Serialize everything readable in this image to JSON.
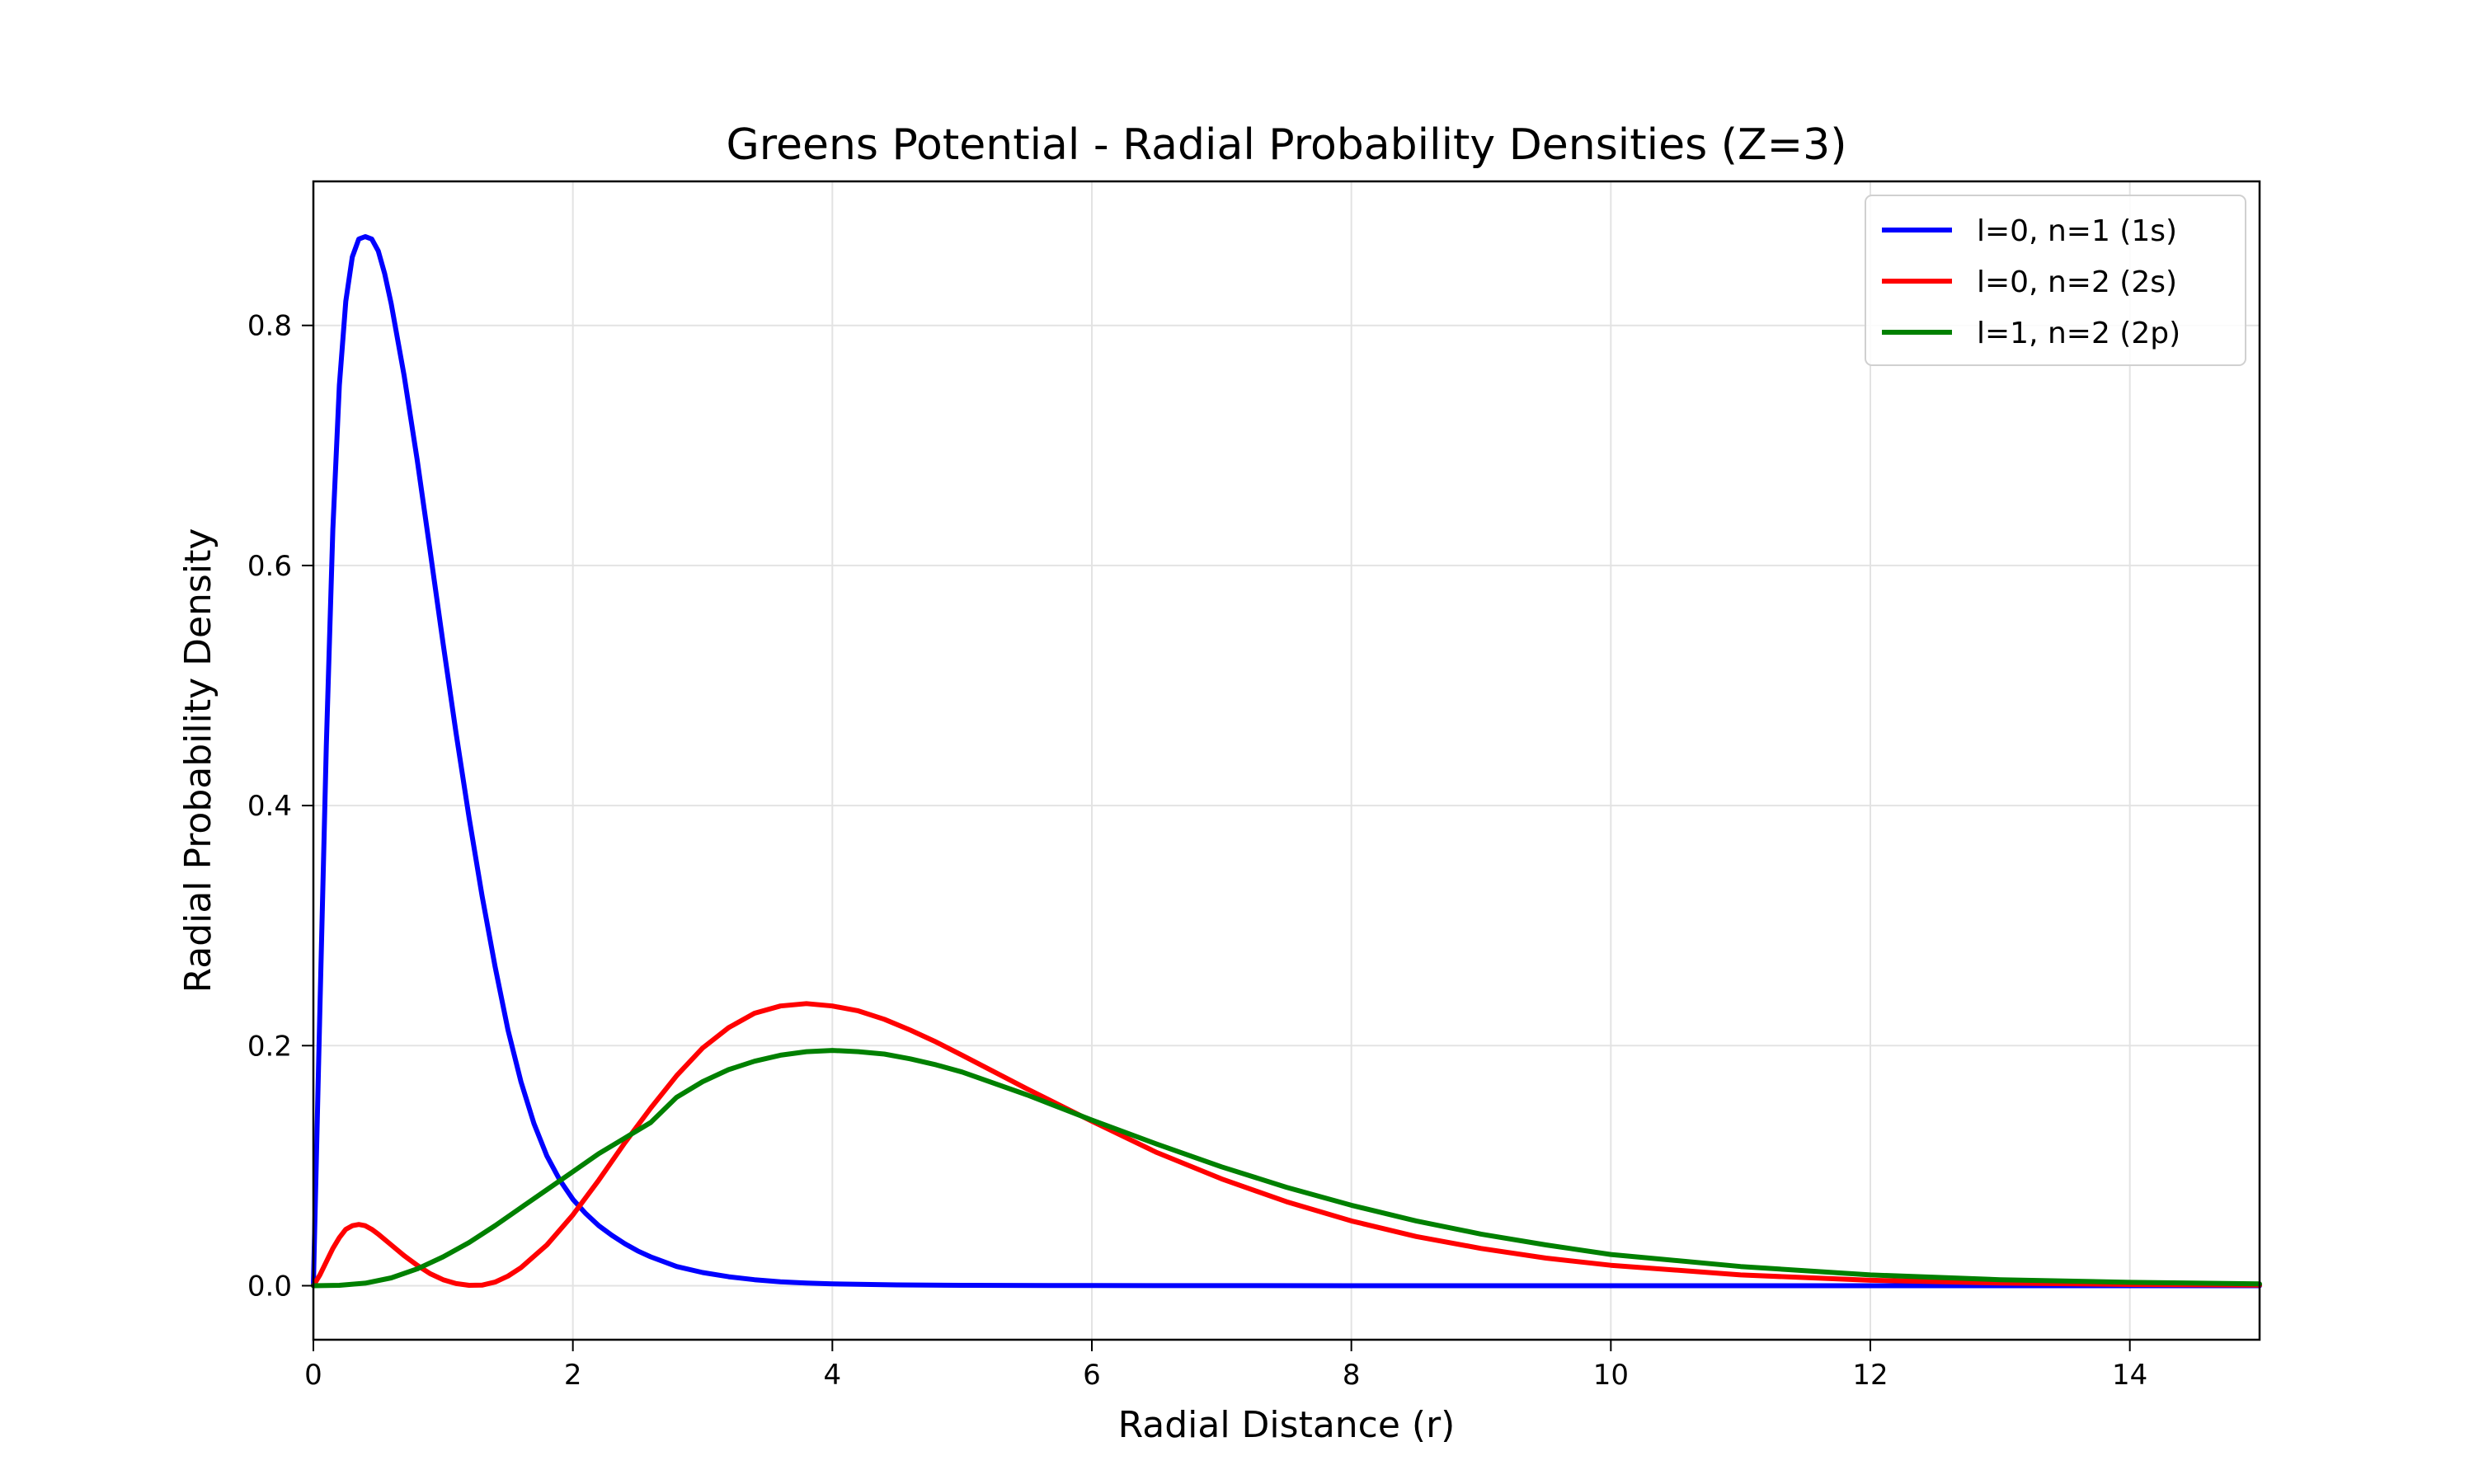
{
  "chart_data": {
    "type": "line",
    "title": "Greens Potential - Radial Probability Densities (Z=3)",
    "xlabel": "Radial Distance (r)",
    "ylabel": "Radial Probability Density",
    "xlim": [
      0,
      15
    ],
    "ylim": [
      -0.045,
      0.92
    ],
    "xticks": [
      0,
      2,
      4,
      6,
      8,
      10,
      12,
      14
    ],
    "yticks": [
      0.0,
      0.2,
      0.4,
      0.6,
      0.8
    ],
    "xtick_labels": [
      "0",
      "2",
      "4",
      "6",
      "8",
      "10",
      "12",
      "14"
    ],
    "ytick_labels": [
      "0.0",
      "0.2",
      "0.4",
      "0.6",
      "0.8"
    ],
    "grid": true,
    "legend_position": "top-right",
    "series": [
      {
        "name": "l=0, n=1 (1s)",
        "color": "#0000ff",
        "x": [
          0,
          0.05,
          0.1,
          0.15,
          0.2,
          0.25,
          0.3,
          0.35,
          0.4,
          0.45,
          0.5,
          0.55,
          0.6,
          0.7,
          0.8,
          0.9,
          1.0,
          1.1,
          1.2,
          1.3,
          1.4,
          1.5,
          1.6,
          1.7,
          1.8,
          1.9,
          2.0,
          2.1,
          2.2,
          2.3,
          2.4,
          2.5,
          2.6,
          2.8,
          3.0,
          3.2,
          3.4,
          3.6,
          3.8,
          4.0,
          4.5,
          5.0,
          6.0,
          8.0,
          10.0,
          12.0,
          15.0
        ],
        "y": [
          0.0,
          0.23,
          0.45,
          0.63,
          0.75,
          0.82,
          0.857,
          0.872,
          0.874,
          0.872,
          0.862,
          0.843,
          0.818,
          0.758,
          0.688,
          0.612,
          0.535,
          0.46,
          0.39,
          0.325,
          0.266,
          0.213,
          0.17,
          0.135,
          0.108,
          0.088,
          0.072,
          0.06,
          0.05,
          0.042,
          0.035,
          0.029,
          0.024,
          0.016,
          0.011,
          0.0075,
          0.005,
          0.0033,
          0.0022,
          0.0015,
          0.0007,
          0.0003,
          0.0001,
          0.0,
          0.0,
          0.0,
          0.0
        ]
      },
      {
        "name": "l=0, n=2 (2s)",
        "color": "#ff0000",
        "x": [
          0,
          0.05,
          0.1,
          0.15,
          0.2,
          0.25,
          0.3,
          0.35,
          0.4,
          0.45,
          0.5,
          0.6,
          0.7,
          0.8,
          0.9,
          1.0,
          1.1,
          1.2,
          1.3,
          1.4,
          1.5,
          1.6,
          1.8,
          2.0,
          2.2,
          2.4,
          2.6,
          2.8,
          3.0,
          3.2,
          3.4,
          3.6,
          3.8,
          4.0,
          4.2,
          4.4,
          4.6,
          4.8,
          5.0,
          5.5,
          6.0,
          6.5,
          7.0,
          7.5,
          8.0,
          8.5,
          9.0,
          9.5,
          10.0,
          11.0,
          12.0,
          13.0,
          14.0,
          15.0
        ],
        "y": [
          0.0,
          0.009,
          0.02,
          0.031,
          0.04,
          0.047,
          0.05,
          0.051,
          0.05,
          0.047,
          0.043,
          0.034,
          0.025,
          0.017,
          0.01,
          0.005,
          0.0018,
          0.0003,
          0.0005,
          0.003,
          0.008,
          0.015,
          0.034,
          0.059,
          0.088,
          0.119,
          0.148,
          0.175,
          0.198,
          0.215,
          0.227,
          0.233,
          0.235,
          0.233,
          0.229,
          0.222,
          0.213,
          0.203,
          0.192,
          0.164,
          0.137,
          0.111,
          0.089,
          0.07,
          0.054,
          0.041,
          0.031,
          0.023,
          0.017,
          0.009,
          0.0045,
          0.0022,
          0.001,
          0.0005
        ]
      },
      {
        "name": "l=1, n=2 (2p)",
        "color": "#008000",
        "x": [
          0,
          0.2,
          0.4,
          0.6,
          0.8,
          1.0,
          1.2,
          1.4,
          1.6,
          1.8,
          2.0,
          2.2,
          2.4,
          2.6,
          2.8,
          3.0,
          3.2,
          3.4,
          3.6,
          3.8,
          4.0,
          4.2,
          4.4,
          4.6,
          4.8,
          5.0,
          5.5,
          6.0,
          6.5,
          7.0,
          7.5,
          8.0,
          8.5,
          9.0,
          9.5,
          10.0,
          11.0,
          12.0,
          13.0,
          14.0,
          15.0
        ],
        "y": [
          0.0,
          0.0003,
          0.0021,
          0.0065,
          0.014,
          0.024,
          0.036,
          0.05,
          0.065,
          0.08,
          0.095,
          0.11,
          0.123,
          0.136,
          0.157,
          0.17,
          0.18,
          0.187,
          0.192,
          0.195,
          0.196,
          0.195,
          0.193,
          0.189,
          0.184,
          0.178,
          0.159,
          0.138,
          0.118,
          0.099,
          0.082,
          0.067,
          0.054,
          0.043,
          0.034,
          0.026,
          0.016,
          0.009,
          0.005,
          0.0028,
          0.0015
        ]
      }
    ]
  }
}
